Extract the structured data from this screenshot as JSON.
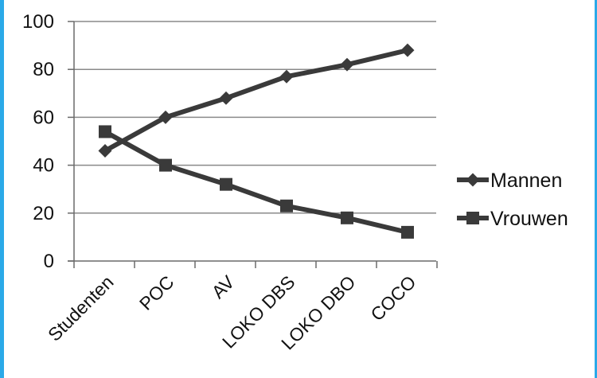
{
  "chart_data": {
    "type": "line",
    "categories": [
      "Studenten",
      "POC",
      "AV",
      "LOKO DBS",
      "LOKO DBO",
      "COCO"
    ],
    "series": [
      {
        "name": "Mannen",
        "marker": "diamond",
        "values": [
          46,
          60,
          68,
          77,
          82,
          88
        ]
      },
      {
        "name": "Vrouwen",
        "marker": "square",
        "values": [
          54,
          40,
          32,
          23,
          18,
          12
        ]
      }
    ],
    "y_ticks": [
      "0",
      "20",
      "40",
      "60",
      "80",
      "100"
    ],
    "ylim": [
      0,
      100
    ],
    "grid": true,
    "legend_position": "right",
    "colors": {
      "line": "#3a3a3a",
      "grid": "#8a8a8a",
      "axis": "#6a6a6a",
      "accent_edges": "#2aa9e8"
    }
  }
}
